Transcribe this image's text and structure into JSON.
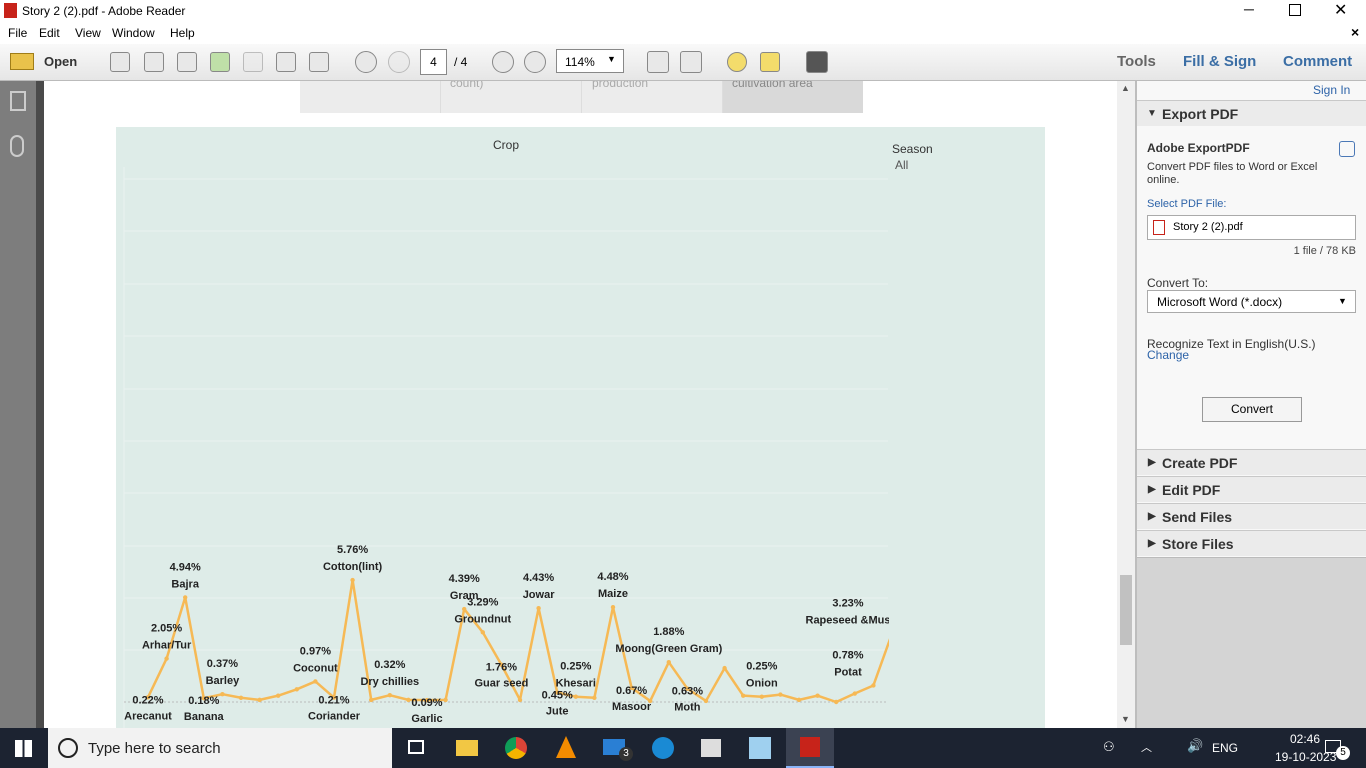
{
  "window": {
    "title": "Story 2 (2).pdf - Adobe Reader"
  },
  "menu": [
    "File",
    "Edit",
    "View",
    "Window",
    "Help"
  ],
  "toolbar": {
    "open": "Open",
    "page": "4",
    "page_total": "/ 4",
    "zoom": "114%",
    "tabs": [
      "Tools",
      "Fill & Sign",
      "Comment"
    ]
  },
  "document": {
    "table_headers": [
      "count)",
      "production",
      "cultivation area"
    ],
    "chart": {
      "type": "line",
      "title": "Crop",
      "legend_title": "Season",
      "legend_item": "All",
      "color": "#f6b955",
      "ylim": [
        0,
        24.7
      ],
      "categories": [
        "Arecanut",
        "Arhar/Tur",
        "Bajra",
        "Banana",
        "Barley",
        null,
        null,
        null,
        null,
        "Coconut",
        "Coriander",
        "Cotton(lint)",
        null,
        "Dry chillies",
        null,
        "Garlic",
        null,
        "Gram",
        "Groundnut",
        "Guar seed",
        null,
        "Jowar",
        "Jute",
        "Khesari",
        null,
        "Maize",
        "Masoor",
        null,
        "Moong(Green Gram)",
        "Moth",
        null,
        null,
        null,
        "Onion",
        null,
        null,
        null,
        null,
        null,
        "Potat",
        "Rapeseed &Mus"
      ],
      "values": [
        0.22,
        2.05,
        4.94,
        0.18,
        0.37,
        0.2,
        0.1,
        0.3,
        0.6,
        0.97,
        0.21,
        5.76,
        0.1,
        0.32,
        0.1,
        0.09,
        0.1,
        4.39,
        3.29,
        1.76,
        0.1,
        4.43,
        0.45,
        0.25,
        0.2,
        4.48,
        0.67,
        0.05,
        1.88,
        0.63,
        0.05,
        1.6,
        0.3,
        0.25,
        0.35,
        0.1,
        0.3,
        0.0,
        0.4,
        0.78,
        3.23
      ],
      "value_labels": [
        "0.22%",
        "2.05%",
        "4.94%",
        "0.18%",
        "0.37%",
        null,
        null,
        null,
        null,
        "0.97%",
        "0.21%",
        "5.76%",
        null,
        "0.32%",
        null,
        "0.09%",
        null,
        "4.39%",
        "3.29%",
        "1.76%",
        null,
        "4.43%",
        "0.45%",
        "0.25%",
        null,
        "4.48%",
        "0.67%",
        null,
        "1.88%",
        "0.63%",
        null,
        null,
        null,
        "0.25%",
        null,
        null,
        null,
        null,
        null,
        "0.78%",
        "3.23%"
      ]
    }
  },
  "right_panel": {
    "sign_in": "Sign In",
    "export_title": "Export PDF",
    "service": "Adobe ExportPDF",
    "description": "Convert PDF files to Word or Excel online.",
    "select_label": "Select PDF File:",
    "file": "Story 2 (2).pdf",
    "file_info": "1 file / 78 KB",
    "convert_to": "Convert To:",
    "format": "Microsoft Word (*.docx)",
    "recognize": "Recognize Text in English(U.S.)",
    "change": "Change",
    "convert": "Convert",
    "sections": [
      "Create PDF",
      "Edit PDF",
      "Send Files",
      "Store Files"
    ]
  },
  "taskbar": {
    "search": "Type here to search",
    "mail_badge": "3",
    "lang": "ENG",
    "time": "02:46",
    "date": "19-10-2023",
    "notifications": "5"
  }
}
